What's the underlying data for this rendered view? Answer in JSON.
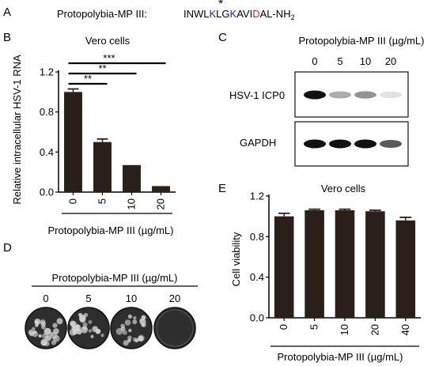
{
  "panels": {
    "A": {
      "letter": "A",
      "peptide_label": "Protopolybia-MP III:",
      "seq_prefix": "INWL",
      "seq_k1": "K",
      "seq_mid1": "LG",
      "seq_k2": "K",
      "seq_mid2": "AVI",
      "seq_d": "D",
      "seq_suffix": "AL-NH",
      "seq_sub": "2",
      "asterisk": "*",
      "colors": {
        "lysine": "#1f1fb4",
        "aspartate": "#e01b1b"
      }
    },
    "B": {
      "letter": "B"
    },
    "C": {
      "letter": "C",
      "header": "Protopolybia-MP III (µg/mL)",
      "lanes": [
        "0",
        "5",
        "10",
        "20"
      ],
      "row1_label": "HSV-1 ICP0",
      "row2_label": "GAPDH",
      "band_intensity_icp0": [
        1.0,
        0.35,
        0.45,
        0.12
      ],
      "band_intensity_gapdh": [
        1.0,
        1.0,
        1.0,
        0.7
      ]
    },
    "D": {
      "letter": "D",
      "header": "Protopolybia-MP III (µg/mL)",
      "wells": [
        "0",
        "5",
        "10",
        "20"
      ],
      "plaque_level": [
        1.0,
        0.9,
        0.8,
        0.0
      ]
    },
    "E": {
      "letter": "E"
    }
  },
  "chart_data": [
    {
      "id": "B",
      "type": "bar",
      "title": "Vero cells",
      "xlabel": "Protopolybia-MP III (µg/mL)",
      "ylabel": "Relative intracellular HSV-1 RNA",
      "categories": [
        "0",
        "5",
        "10",
        "20"
      ],
      "values": [
        1.0,
        0.5,
        0.27,
        0.06
      ],
      "errors": [
        0.03,
        0.03,
        0.0,
        0.0
      ],
      "ylim": [
        0,
        1.2
      ],
      "yticks": [
        "0.0",
        "0.4",
        "0.8",
        "1.2"
      ],
      "ytick_values": [
        0,
        0.4,
        0.8,
        1.2
      ],
      "significance": [
        {
          "from": 0,
          "to": 1,
          "label": "**"
        },
        {
          "from": 0,
          "to": 2,
          "label": "**"
        },
        {
          "from": 0,
          "to": 3,
          "label": "***"
        }
      ],
      "bar_color": "#2b1f1a"
    },
    {
      "id": "E",
      "type": "bar",
      "title": "Vero cells",
      "xlabel": "Protopolybia-MP III (µg/mL)",
      "ylabel": "Cell viability",
      "categories": [
        "0",
        "5",
        "10",
        "20",
        "40"
      ],
      "values": [
        1.0,
        1.06,
        1.06,
        1.05,
        0.96
      ],
      "errors": [
        0.03,
        0.01,
        0.01,
        0.01,
        0.03
      ],
      "ylim": [
        0,
        1.2
      ],
      "yticks": [
        "0.0",
        "0.4",
        "0.8",
        "1.2"
      ],
      "ytick_values": [
        0,
        0.4,
        0.8,
        1.2
      ],
      "bar_color": "#2b1f1a"
    }
  ]
}
